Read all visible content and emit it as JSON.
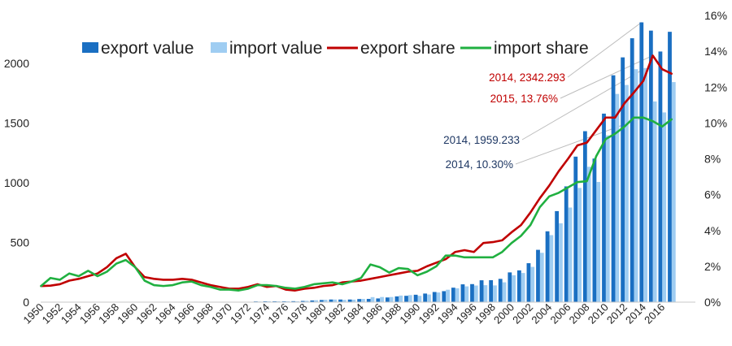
{
  "chart_data": {
    "type": "bar",
    "x": [
      1950,
      1951,
      1952,
      1953,
      1954,
      1955,
      1956,
      1957,
      1958,
      1959,
      1960,
      1961,
      1962,
      1963,
      1964,
      1965,
      1966,
      1967,
      1968,
      1969,
      1970,
      1971,
      1972,
      1973,
      1974,
      1975,
      1976,
      1977,
      1978,
      1979,
      1980,
      1981,
      1982,
      1983,
      1984,
      1985,
      1986,
      1987,
      1988,
      1989,
      1990,
      1991,
      1992,
      1993,
      1994,
      1995,
      1996,
      1997,
      1998,
      1999,
      2000,
      2001,
      2002,
      2003,
      2004,
      2005,
      2006,
      2007,
      2008,
      2009,
      2010,
      2011,
      2012,
      2013,
      2014,
      2015,
      2016,
      2017
    ],
    "x_tick_labels": [
      "1950",
      "1952",
      "1954",
      "1956",
      "1958",
      "1960",
      "1962",
      "1964",
      "1966",
      "1968",
      "1970",
      "1972",
      "1974",
      "1976",
      "1978",
      "1980",
      "1982",
      "1984",
      "1986",
      "1988",
      "1990",
      "1992",
      "1994",
      "1996",
      "1998",
      "2000",
      "2002",
      "2004",
      "2006",
      "2008",
      "2010",
      "2012",
      "2014",
      "2016"
    ],
    "left_axis": {
      "ylim": [
        0,
        2400
      ],
      "ticks": [
        0,
        500,
        1000,
        1500,
        2000
      ]
    },
    "right_axis": {
      "ylim": [
        0,
        16
      ],
      "ticks": [
        0,
        2,
        4,
        6,
        8,
        10,
        12,
        14,
        16
      ],
      "tick_suffix": "%"
    },
    "series": [
      {
        "name": "export value",
        "kind": "bar",
        "axis": "left",
        "color": "#1a6fc2",
        "values": [
          null,
          null,
          null,
          null,
          null,
          null,
          null,
          null,
          null,
          null,
          null,
          null,
          null,
          null,
          null,
          null,
          null,
          null,
          null,
          null,
          null,
          null,
          null,
          6,
          7,
          7,
          7,
          8,
          10,
          14,
          18,
          22,
          22,
          22,
          26,
          27,
          31,
          39,
          48,
          53,
          62,
          72,
          85,
          92,
          121,
          149,
          151,
          183,
          184,
          195,
          249,
          266,
          326,
          438,
          593,
          762,
          969,
          1218,
          1431,
          1202,
          1578,
          1899,
          2049,
          2209,
          2342,
          2273,
          2098,
          2263
        ]
      },
      {
        "name": "import value",
        "kind": "bar",
        "axis": "left",
        "color": "#9fcdf2",
        "values": [
          null,
          null,
          null,
          null,
          null,
          null,
          null,
          null,
          null,
          null,
          null,
          null,
          null,
          null,
          null,
          null,
          null,
          null,
          null,
          null,
          null,
          null,
          null,
          5,
          7,
          7,
          7,
          7,
          11,
          16,
          20,
          22,
          19,
          21,
          27,
          42,
          43,
          43,
          55,
          59,
          53,
          64,
          81,
          104,
          116,
          132,
          139,
          142,
          140,
          166,
          225,
          244,
          295,
          413,
          561,
          660,
          792,
          956,
          1133,
          1006,
          1396,
          1743,
          1818,
          1950,
          1959,
          1680,
          1588,
          1842
        ]
      },
      {
        "name": "export share",
        "kind": "line",
        "axis": "right",
        "color": "#c00000",
        "values": [
          0.9,
          0.92,
          1.0,
          1.2,
          1.3,
          1.45,
          1.6,
          1.95,
          2.45,
          2.7,
          1.95,
          1.4,
          1.3,
          1.25,
          1.25,
          1.3,
          1.25,
          1.1,
          0.95,
          0.85,
          0.75,
          0.75,
          0.85,
          1.0,
          0.85,
          0.9,
          0.7,
          0.65,
          0.75,
          0.8,
          0.9,
          0.95,
          1.1,
          1.15,
          1.2,
          1.3,
          1.4,
          1.5,
          1.6,
          1.7,
          1.75,
          2.0,
          2.2,
          2.4,
          2.8,
          2.9,
          2.8,
          3.3,
          3.35,
          3.45,
          3.9,
          4.3,
          5.0,
          5.8,
          6.5,
          7.3,
          8.0,
          8.75,
          8.9,
          9.6,
          10.3,
          10.3,
          11.1,
          11.7,
          12.35,
          13.76,
          13.0,
          12.75
        ]
      },
      {
        "name": "import share",
        "kind": "line",
        "axis": "right",
        "color": "#20b040",
        "values": [
          0.9,
          1.35,
          1.25,
          1.6,
          1.45,
          1.75,
          1.45,
          1.7,
          2.15,
          2.35,
          1.95,
          1.2,
          0.95,
          0.9,
          0.95,
          1.1,
          1.15,
          0.95,
          0.85,
          0.7,
          0.7,
          0.65,
          0.75,
          0.95,
          0.95,
          0.9,
          0.8,
          0.75,
          0.85,
          1.0,
          1.05,
          1.1,
          1.0,
          1.15,
          1.35,
          2.1,
          1.95,
          1.65,
          1.9,
          1.85,
          1.5,
          1.7,
          2.0,
          2.6,
          2.6,
          2.5,
          2.5,
          2.5,
          2.5,
          2.8,
          3.3,
          3.7,
          4.3,
          5.3,
          5.9,
          6.1,
          6.4,
          6.7,
          6.75,
          8.15,
          9.1,
          9.4,
          9.8,
          10.3,
          10.3,
          10.1,
          9.8,
          10.2
        ]
      }
    ],
    "annotations": [
      {
        "text": "2014, 2342.293",
        "color": "#c00000",
        "x": 2014,
        "series": "export value"
      },
      {
        "text": "2015, 13.76%",
        "color": "#c00000",
        "x": 2015,
        "series": "export share"
      },
      {
        "text": "2014, 1959.233",
        "color": "#1f3864",
        "x": 2014,
        "series": "import value"
      },
      {
        "text": "2014, 10.30%",
        "color": "#1f3864",
        "x": 2014,
        "series": "import share"
      }
    ],
    "legend_position": "top",
    "grid": false
  }
}
